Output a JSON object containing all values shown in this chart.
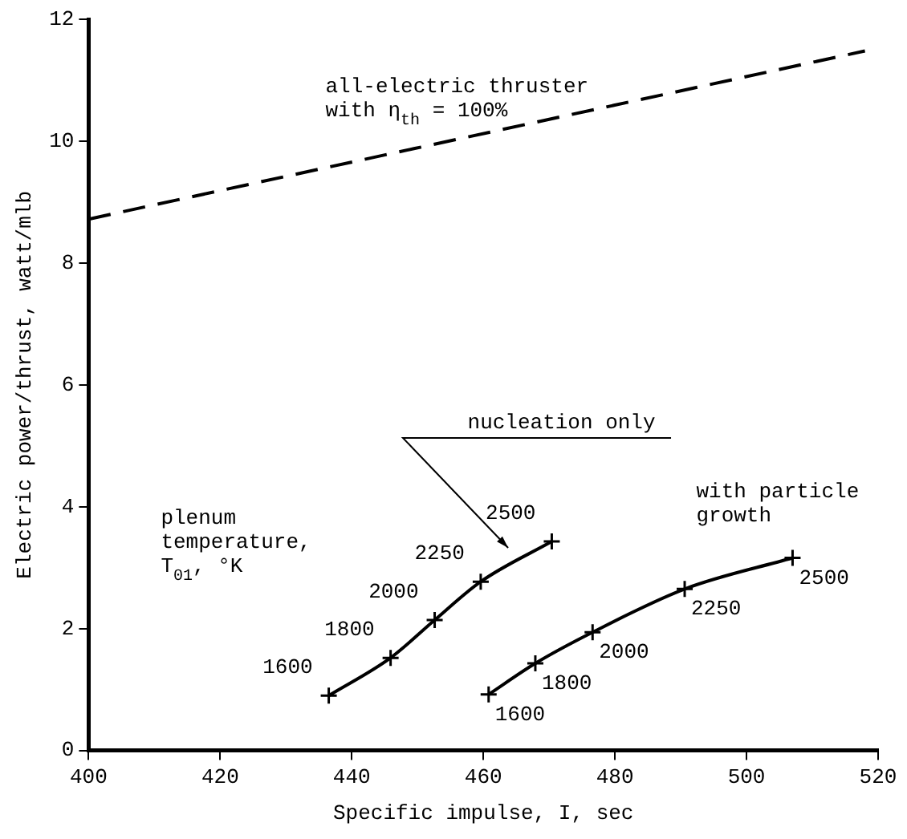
{
  "chart_data": {
    "type": "line",
    "xlabel": "Specific impulse, I, sec",
    "ylabel": "Electric power/thrust, watt/mlb",
    "xlim": [
      400,
      520
    ],
    "xticks": [
      400,
      420,
      440,
      460,
      480,
      500,
      520
    ],
    "ylim": [
      0,
      12
    ],
    "yticks": [
      0,
      2,
      4,
      6,
      8,
      10,
      12
    ],
    "grid": false,
    "legend": false,
    "series": [
      {
        "color": "#000000",
        "x": [
          400,
          518
        ],
        "values": [
          8.72,
          11.48
        ],
        "line_style": "dashed",
        "marker": "none"
      },
      {
        "color": "#000000",
        "x": [
          436.5,
          445.9,
          452.6,
          459.6,
          470.4
        ],
        "values": [
          0.9,
          1.52,
          2.14,
          2.77,
          3.43
        ],
        "line_style": "solid",
        "marker": "cross"
      },
      {
        "color": "#000000",
        "x": [
          460.8,
          467.9,
          476.6,
          490.6,
          507
        ],
        "values": [
          0.92,
          1.43,
          1.94,
          2.65,
          3.16
        ],
        "line_style": "solid",
        "marker": "cross"
      }
    ],
    "annotations": [
      "all-electric thruster\nwith η$_{th}$ = 100%",
      "nucleation only",
      {
        "text": "with particle\ngrowth",
        "x": 507,
        "y": 3.16
      },
      "plenum\ntemperature,\nT$_{01}$, °K",
      {
        "text": "1600",
        "x": 436.5,
        "y": 0.9
      },
      {
        "text": "1800",
        "x": 445.9,
        "y": 1.52
      },
      {
        "text": "2000",
        "x": 452.6,
        "y": 2.14
      },
      {
        "text": "2250",
        "x": 459.6,
        "y": 2.77
      },
      {
        "text": "2500",
        "x": 470.4,
        "y": 3.43
      },
      {
        "text": "1600",
        "x": 460.8,
        "y": 0.92
      },
      {
        "text": "1800",
        "x": 467.9,
        "y": 1.43
      },
      {
        "text": "2000",
        "x": 476.6,
        "y": 1.94
      },
      {
        "text": "2250",
        "x": 490.6,
        "y": 2.65
      },
      {
        "text": "2500",
        "x": 507,
        "y": 3.16
      }
    ]
  }
}
